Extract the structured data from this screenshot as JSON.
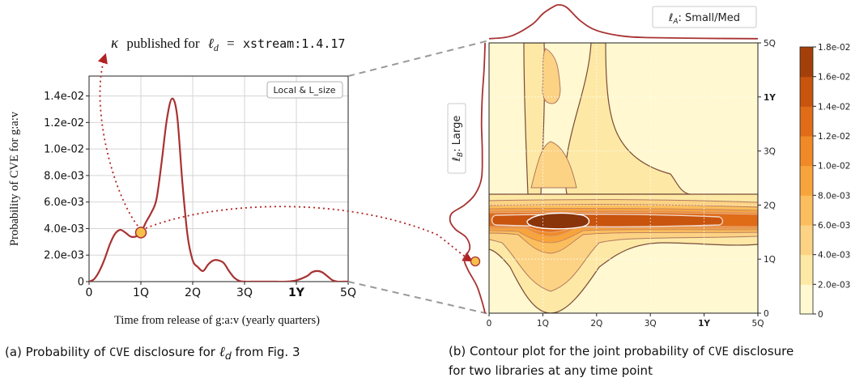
{
  "chart_data": [
    {
      "type": "line",
      "annotation": {
        "kappa": "κ",
        "text": "published for",
        "ell": "ℓ",
        "sub": "d",
        "eq": "=",
        "value": "xstream:1.4.17"
      },
      "legend": "Local & L_size",
      "ylabel": "Probability of CVE for g:a:v",
      "xlabel": "Time from release of g:a:v (yearly quarters)",
      "xlim": [
        0,
        5
      ],
      "ylim": [
        0,
        0.0155
      ],
      "xticks": [
        "0",
        "1Q",
        "2Q",
        "3Q",
        "1Y",
        "5Q"
      ],
      "yticks": [
        "0",
        "2.0e-03",
        "4.0e-03",
        "6.0e-03",
        "8.0e-03",
        "1.0e-02",
        "1.2e-02",
        "1.4e-02"
      ],
      "grid": true,
      "line_color": "#a83232",
      "series": [
        {
          "x": [
            0,
            0.1,
            0.2,
            0.3,
            0.4,
            0.5,
            0.6,
            0.7,
            0.8,
            0.9,
            1.0,
            1.1,
            1.2,
            1.3,
            1.4,
            1.5,
            1.6,
            1.7,
            1.8,
            1.9,
            2.0,
            2.1,
            2.2,
            2.3,
            2.4,
            2.5,
            2.6,
            2.7,
            2.8,
            2.9,
            3.0,
            3.2,
            3.4,
            3.6,
            3.8,
            4.0,
            4.2,
            4.3,
            4.4,
            4.5,
            4.6,
            4.7,
            4.8,
            4.9,
            5.0
          ],
          "y": [
            0,
            0.0002,
            0.0008,
            0.0017,
            0.0028,
            0.0036,
            0.0039,
            0.0037,
            0.0034,
            0.0034,
            0.0037,
            0.0045,
            0.0052,
            0.0062,
            0.009,
            0.0122,
            0.0138,
            0.0125,
            0.0075,
            0.0035,
            0.0016,
            0.0011,
            0.0008,
            0.0013,
            0.0016,
            0.0016,
            0.0014,
            0.0008,
            0.0003,
            5e-05,
            0,
            0,
            0,
            0,
            0,
            0.0001,
            0.0004,
            0.0007,
            0.0008,
            0.0007,
            0.0004,
            0.0001,
            0,
            0,
            0
          ]
        }
      ],
      "highlight_point": {
        "x": 1.0,
        "y": 0.0037
      },
      "caption": {
        "prefix": "(a) Probability of",
        "cve": "CVE",
        "middle": "disclosure for",
        "ell": "ℓ",
        "sub": "d",
        "suffix": "from Fig. 3"
      }
    },
    {
      "type": "heatmap",
      "subtype": "contour",
      "x_label_symbol": "ℓ",
      "x_label_sub": "A",
      "x_label_text": ": Small/Med",
      "y_label_symbol": "ℓ",
      "y_label_sub": "B",
      "y_label_text": ": Large",
      "xlim": [
        0,
        5
      ],
      "ylim": [
        0,
        5
      ],
      "xticks": [
        "0",
        "1Q",
        "2Q",
        "3Q",
        "1Y",
        "5Q"
      ],
      "yticks": [
        "0",
        "1Q",
        "2Q",
        "3Q",
        "1Y",
        "5Q"
      ],
      "colorbar": {
        "ticks": [
          "0",
          "2.0e-03",
          "4.0e-03",
          "6.0e-03",
          "8.0e-03",
          "1.0e-02",
          "1.2e-02",
          "1.4e-02",
          "1.6e-02",
          "1.8e-02"
        ],
        "colors": [
          "#fff8d0",
          "#fde9a5",
          "#fcd384",
          "#fbbe5e",
          "#f8a43c",
          "#ef8a26",
          "#e06c18",
          "#c8540e",
          "#a3400a"
        ]
      },
      "marginal_color": "#a83232",
      "caption": {
        "prefix": "(b) Contour plot for the joint probability of",
        "cve": "CVE",
        "line1_suffix": "disclosure",
        "line2": "for two libraries at any time point"
      }
    }
  ]
}
